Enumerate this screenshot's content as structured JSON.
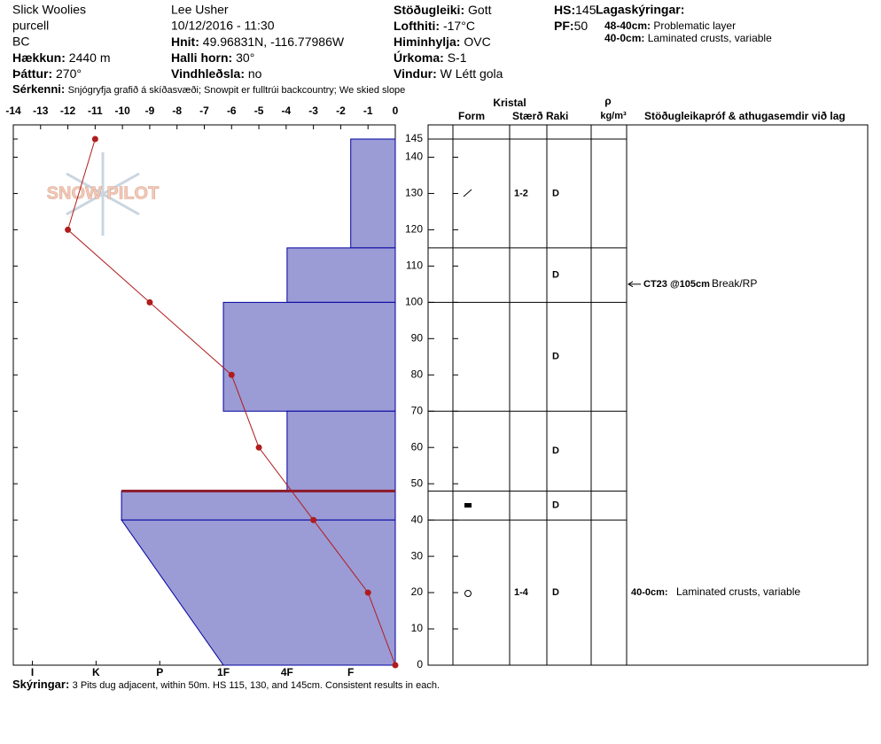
{
  "header": {
    "site": "Slick Woolies",
    "range": "purcell",
    "state": "BC",
    "elevation": {
      "label": "Hækkun:",
      "value": "2440 m"
    },
    "aspect": {
      "label": "Þáttur:",
      "value": "270°"
    },
    "observer": "Lee Usher",
    "datetime": "10/12/2016 - 11:30",
    "location": {
      "label": "Hnit:",
      "value": "49.96831N, -116.77986W"
    },
    "slope": {
      "label": "Halli horn:",
      "value": "30°"
    },
    "wind_loading": {
      "label": "Vindhleðsla:",
      "value": "no"
    },
    "stability": {
      "label": "Stöðugleiki:",
      "value": "Gott"
    },
    "air_temp": {
      "label": "Lofthiti:",
      "value": "-17°C"
    },
    "sky": {
      "label": "Himinhylja:",
      "value": "OVC"
    },
    "precip": {
      "label": "Úrkoma:",
      "value": "S-1"
    },
    "wind": {
      "label": "Vindur:",
      "value": "W Létt gola"
    },
    "hs": {
      "label": "HS:",
      "value": 145
    },
    "pf": {
      "label": "PF:",
      "value": 50
    },
    "legend": {
      "title": "Lagaskýringar:",
      "items": [
        {
          "label": "48-40cm:",
          "text": "Problematic layer"
        },
        {
          "label": "40-0cm:",
          "text": "Laminated crusts, variable"
        }
      ]
    },
    "features": {
      "label": "Sérkenni:",
      "text": "Snjógryfja grafið á skíðasvæði; Snowpit er fulltrúi backcountry; We skied slope"
    },
    "notes": {
      "label": "Skýringar:",
      "text": "3 Pits dug adjacent, within 50m. HS 115, 130, and 145cm. Consistent results in each."
    },
    "logo": "SNOW PILOT"
  },
  "chart_data": {
    "type": "snow_profile",
    "ylim": [
      0,
      145
    ],
    "yticks": [
      0,
      10,
      20,
      30,
      40,
      50,
      60,
      70,
      80,
      90,
      100,
      110,
      120,
      130,
      140,
      145
    ],
    "temperature": {
      "color": "#b01c1c",
      "depths": [
        145,
        120,
        100,
        80,
        60,
        40,
        20,
        0
      ],
      "values": [
        -11,
        -12,
        -9,
        -6,
        -5,
        -3,
        -1,
        0
      ],
      "xlim": [
        -14,
        0
      ],
      "xticks": [
        -14,
        -13,
        -12,
        -11,
        -10,
        -9,
        -8,
        -7,
        -6,
        -5,
        -4,
        -3,
        -2,
        -1,
        0
      ]
    },
    "hardness": {
      "color": "#9b9bd6",
      "edge": "#0000a0",
      "problem_color": "#8b1a2a",
      "hlim": [
        0.3,
        6.3
      ],
      "ticks": [
        {
          "value": 1,
          "label": "F"
        },
        {
          "value": 2,
          "label": "4F"
        },
        {
          "value": 3,
          "label": "1F"
        },
        {
          "value": 4,
          "label": "P"
        },
        {
          "value": 5,
          "label": "K"
        },
        {
          "value": 6,
          "label": "I"
        }
      ]
    },
    "columns": {
      "crystal": "Kristal",
      "form": "Form",
      "size": "Stærð",
      "moisture": "Raki",
      "density": "ρ",
      "density_unit": "kg/m³",
      "comments": "Stöðugleikapróf & athugasemdir við lag"
    },
    "layers": [
      {
        "top": 145,
        "bottom": 115,
        "hardness": [
          1,
          1
        ],
        "size": "1-2",
        "moisture": "D"
      },
      {
        "top": 115,
        "bottom": 100,
        "hardness": [
          2,
          2
        ],
        "moisture": "D"
      },
      {
        "top": 100,
        "bottom": 70,
        "hardness": [
          3,
          3
        ],
        "moisture": "D"
      },
      {
        "top": 70,
        "bottom": 48,
        "hardness": [
          2,
          2
        ],
        "moisture": "D"
      },
      {
        "top": 48,
        "bottom": 40,
        "hardness": [
          4.6,
          4.6
        ],
        "moisture": "D",
        "problematic": true
      },
      {
        "top": 40,
        "bottom": 0,
        "hardness": [
          4.6,
          3
        ],
        "size": "1-4",
        "moisture": "D",
        "comment": {
          "label": "40-0cm:",
          "text": "Laminated crusts, variable"
        }
      }
    ],
    "tests": [
      {
        "depth": 105,
        "label": "CT23 @105cm",
        "result": "Break/RP"
      }
    ]
  }
}
